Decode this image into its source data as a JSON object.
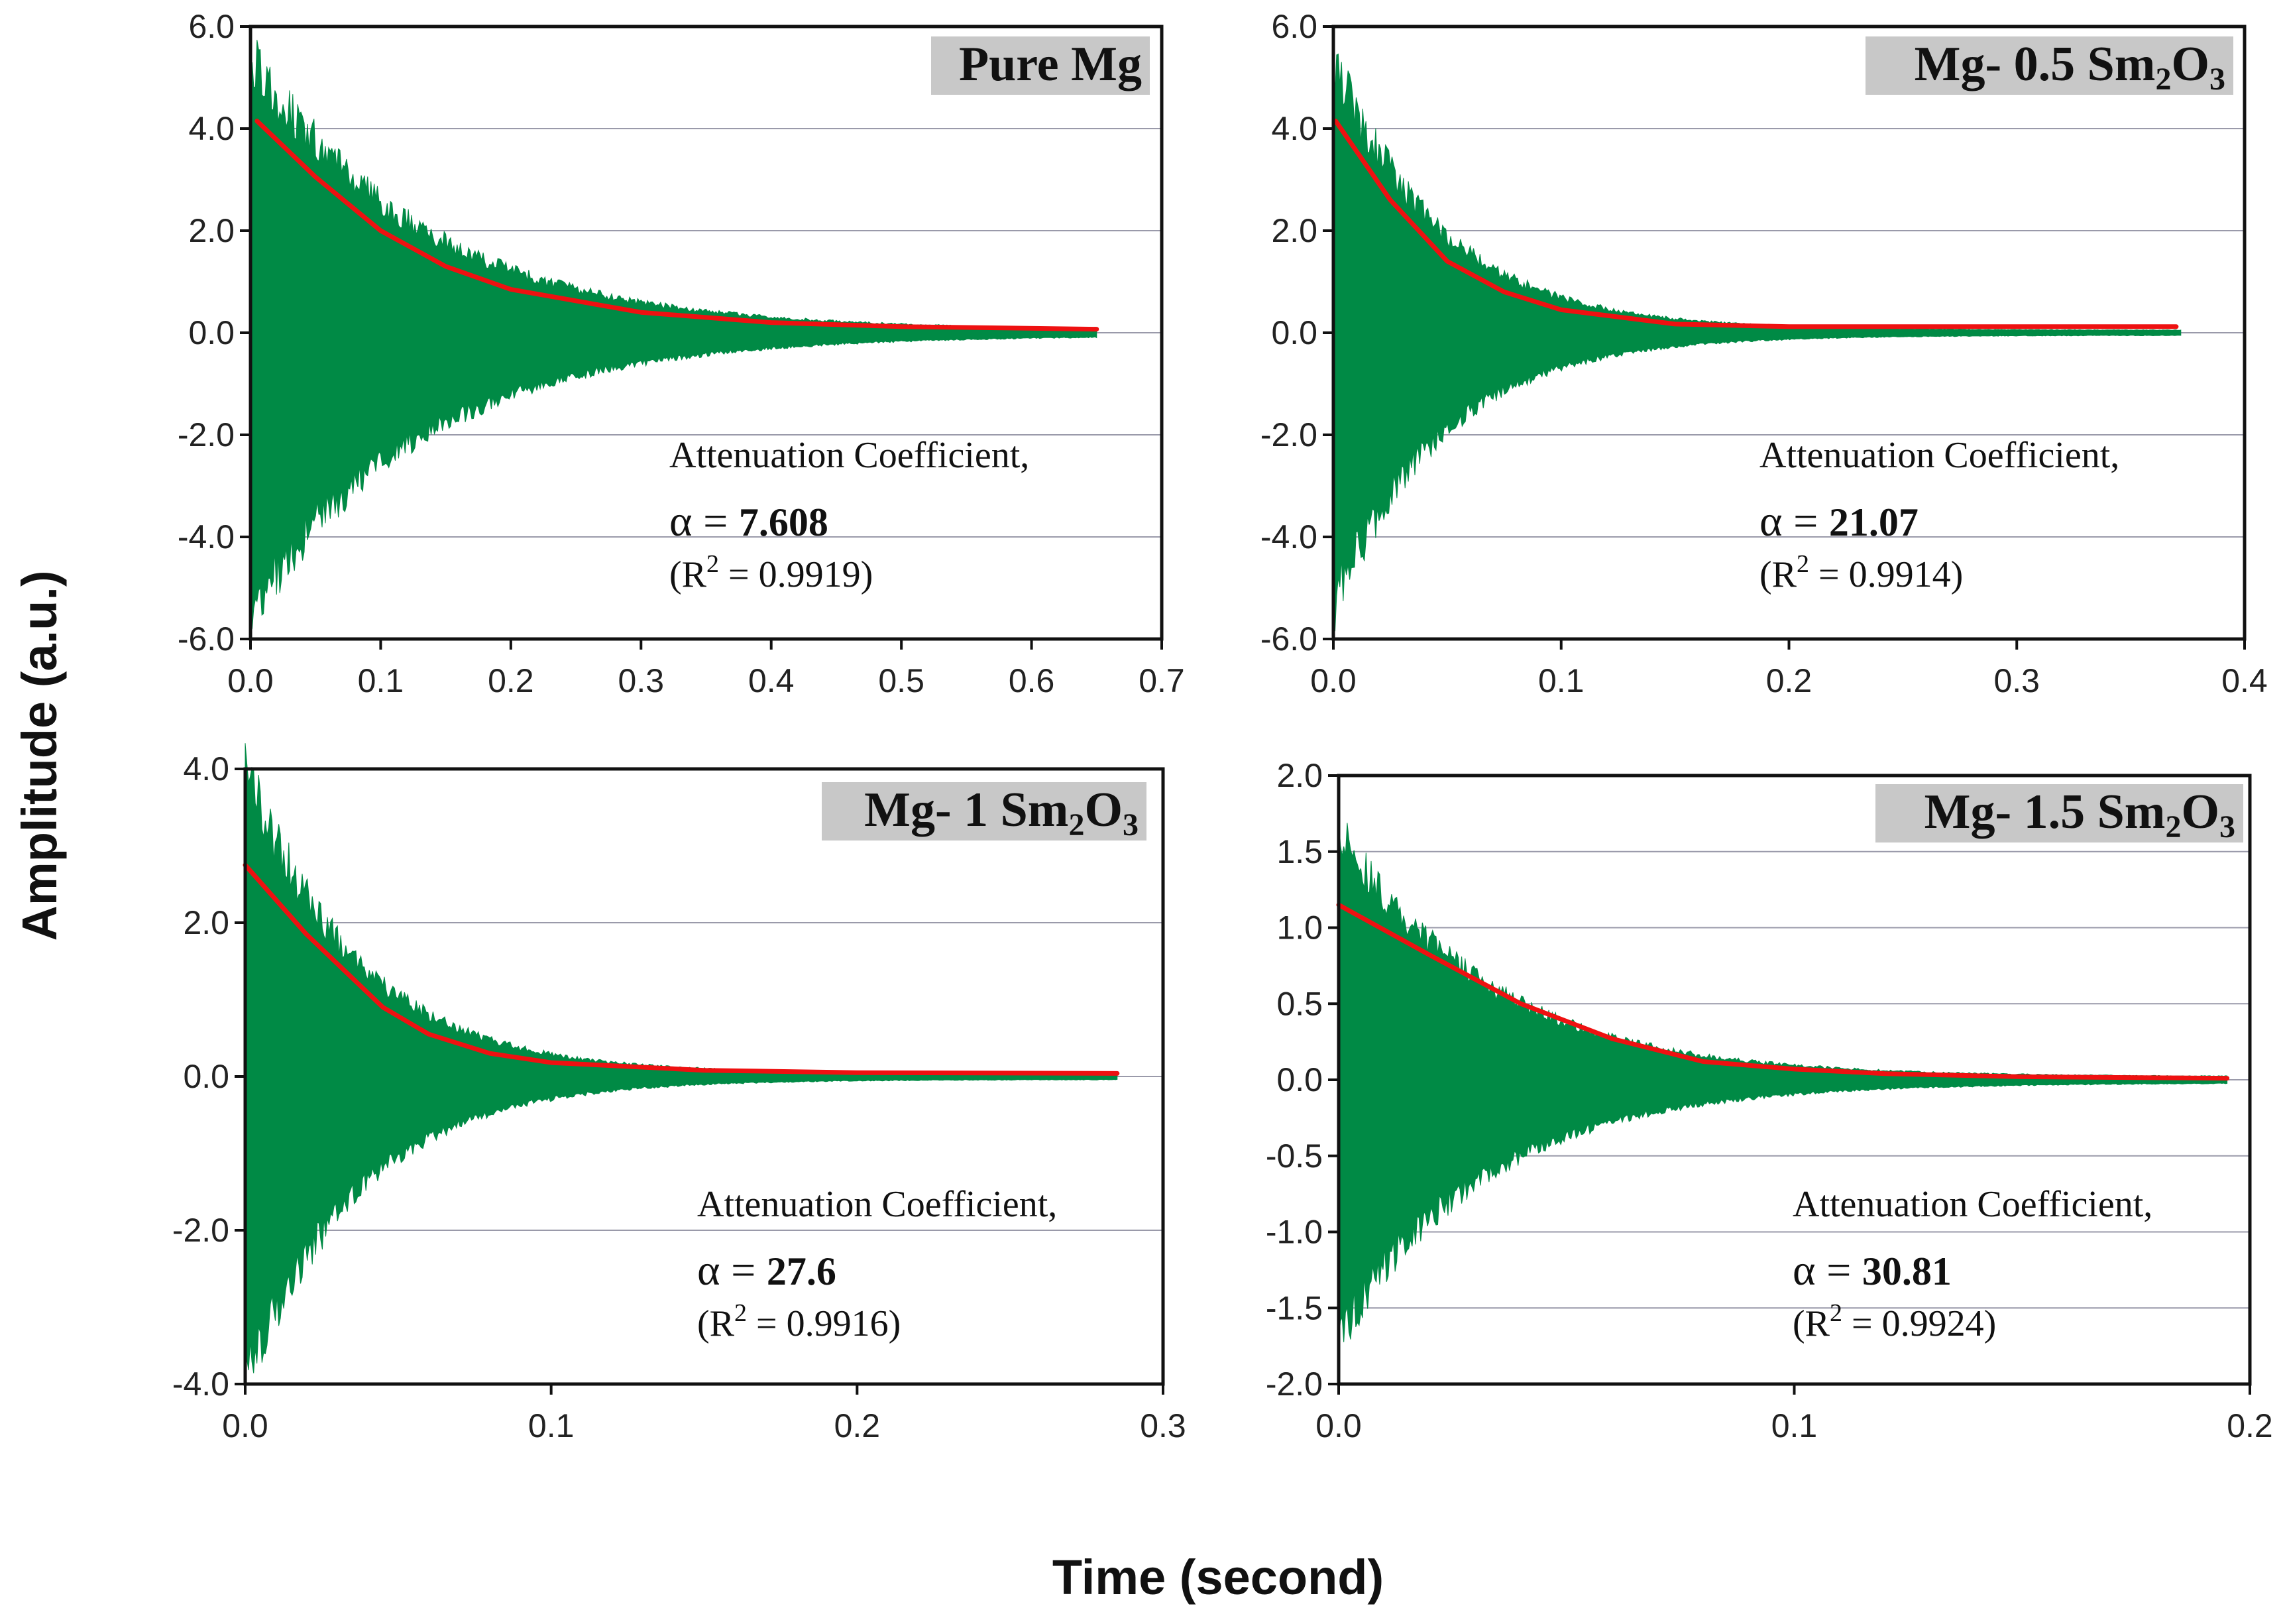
{
  "figure": {
    "ylabel": "Amplitude (a.u.)",
    "xlabel": "Time (second)",
    "colors": {
      "signal": "#008a45",
      "fit": "#ee1111",
      "grid": "#9a9aaa",
      "label_bg": "#c8c8c8"
    }
  },
  "chart_data": [
    {
      "type": "area",
      "title_main": "Pure Mg",
      "title_sub": "",
      "title_tail": "",
      "annotation": {
        "line1": "Attenuation Coefficient,",
        "alpha_symbol": "α",
        "equals": "=",
        "alpha_value": "7.608",
        "r2_open": "(R",
        "r2_exp": "2",
        "r2_rest": "= 0.9919)"
      },
      "xlim": [
        0,
        0.7
      ],
      "ylim": [
        -6.0,
        6.0
      ],
      "xticks": [
        0,
        0.1,
        0.2,
        0.3,
        0.4,
        0.5,
        0.6,
        0.7
      ],
      "xticklabels": [
        "0.0",
        "0.1",
        "0.2",
        "0.3",
        "0.4",
        "0.5",
        "0.6",
        "0.7"
      ],
      "yticks": [
        -6,
        -4,
        -2,
        0,
        2,
        4,
        6
      ],
      "yticklabels": [
        "-6.0",
        "-4.0",
        "-2.0",
        "0.0",
        "2.0",
        "4.0",
        "6.0"
      ],
      "signal": {
        "t_end": 0.65,
        "peak": 5.4,
        "decay": 7.608,
        "tail": 0.05
      },
      "fit": {
        "x": [
          0.005,
          0.05,
          0.1,
          0.15,
          0.2,
          0.3,
          0.4,
          0.5,
          0.65
        ],
        "y": [
          4.15,
          3.05,
          2.0,
          1.3,
          0.85,
          0.4,
          0.2,
          0.12,
          0.07
        ]
      }
    },
    {
      "type": "area",
      "title_main": "Mg- 0.5 Sm",
      "title_sub": "2",
      "title_tail": "O3",
      "annotation": {
        "line1": "Attenuation Coefficient,",
        "alpha_symbol": "α",
        "equals": "=",
        "alpha_value": "21.07",
        "r2_open": "(R",
        "r2_exp": "2",
        "r2_rest": "= 0.9914)"
      },
      "xlim": [
        0,
        0.4
      ],
      "ylim": [
        -6.0,
        6.0
      ],
      "xticks": [
        0,
        0.1,
        0.2,
        0.3,
        0.4
      ],
      "xticklabels": [
        "0.0",
        "0.1",
        "0.2",
        "0.3",
        "0.4"
      ],
      "yticks": [
        -6,
        -4,
        -2,
        0,
        2,
        4,
        6
      ],
      "yticklabels": [
        "-6.0",
        "-4.0",
        "-2.0",
        "0.0",
        "2.0",
        "4.0",
        "6.0"
      ],
      "signal": {
        "t_end": 0.372,
        "peak": 5.3,
        "decay": 21.07,
        "tail": 0.05
      },
      "fit": {
        "x": [
          0.001,
          0.025,
          0.05,
          0.075,
          0.1,
          0.15,
          0.2,
          0.25,
          0.3,
          0.37
        ],
        "y": [
          4.15,
          2.6,
          1.4,
          0.8,
          0.45,
          0.17,
          0.12,
          0.12,
          0.12,
          0.12
        ]
      }
    },
    {
      "type": "area",
      "title_main": "Mg- 1 Sm",
      "title_sub": "2",
      "title_tail": "O3",
      "annotation": {
        "line1": "Attenuation Coefficient,",
        "alpha_symbol": "α",
        "equals": "=",
        "alpha_value": "27.6",
        "r2_open": "(R",
        "r2_exp": "2",
        "r2_rest": "= 0.9916)"
      },
      "xlim": [
        0,
        0.3
      ],
      "ylim": [
        -4.0,
        4.0
      ],
      "xticks": [
        0,
        0.1,
        0.2,
        0.3
      ],
      "xticklabels": [
        "0.0",
        "0.1",
        "0.2",
        "0.3"
      ],
      "yticks": [
        -4,
        -2,
        0,
        2,
        4
      ],
      "yticklabels": [
        "-4.0",
        "-2.0",
        "0.0",
        "2.0",
        "4.0"
      ],
      "signal": {
        "t_end": 0.285,
        "peak": 4.0,
        "decay": 27.6,
        "tail": 0.04
      },
      "fit": {
        "x": [
          0.0,
          0.02,
          0.045,
          0.06,
          0.08,
          0.1,
          0.15,
          0.2,
          0.285
        ],
        "y": [
          2.75,
          1.85,
          0.9,
          0.55,
          0.3,
          0.18,
          0.08,
          0.05,
          0.04
        ]
      }
    },
    {
      "type": "area",
      "title_main": "Mg- 1.5 Sm",
      "title_sub": "2",
      "title_tail": "O3",
      "annotation": {
        "line1": "Attenuation Coefficient,",
        "alpha_symbol": "α",
        "equals": "=",
        "alpha_value": "30.81",
        "r2_open": "(R",
        "r2_exp": "2",
        "r2_rest": "= 0.9924)"
      },
      "xlim": [
        0,
        0.2
      ],
      "ylim": [
        -2.0,
        2.0
      ],
      "xticks": [
        0,
        0.1,
        0.2
      ],
      "xticklabels": [
        "0.0",
        "0.1",
        "0.2"
      ],
      "yticks": [
        -2,
        -1.5,
        -1,
        -0.5,
        0,
        0.5,
        1,
        1.5,
        2
      ],
      "yticklabels": [
        "-2.0",
        "-1.5",
        "-1.0",
        "-0.5",
        "0.0",
        "0.5",
        "1.0",
        "1.5",
        "2.0"
      ],
      "signal": {
        "t_end": 0.195,
        "peak": 1.65,
        "decay": 30.81,
        "tail": 0.02
      },
      "fit": {
        "x": [
          0.0,
          0.02,
          0.04,
          0.06,
          0.08,
          0.1,
          0.12,
          0.15,
          0.195
        ],
        "y": [
          1.15,
          0.82,
          0.5,
          0.27,
          0.12,
          0.07,
          0.04,
          0.02,
          0.01
        ]
      }
    }
  ]
}
